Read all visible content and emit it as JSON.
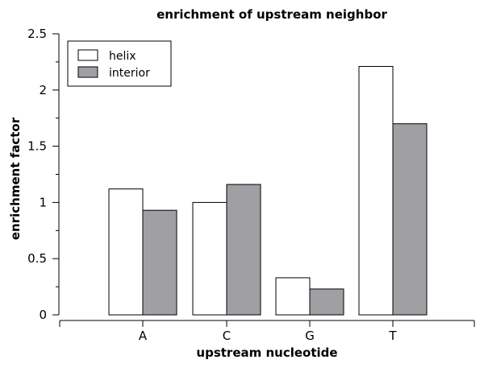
{
  "chart_data": {
    "type": "bar",
    "title": "enrichment of upstream neighbor",
    "xlabel": "upstream nucleotide",
    "ylabel": "enrichment factor",
    "categories": [
      "A",
      "C",
      "G",
      "T"
    ],
    "ylim": [
      0,
      2.5
    ],
    "yticks": [
      0,
      0.5,
      1,
      1.5,
      2,
      2.5
    ],
    "ytick_labels": [
      "0",
      "0.5",
      "1",
      "1.5",
      "2",
      "2.5"
    ],
    "series": [
      {
        "name": "helix",
        "color": "#ffffff",
        "values": [
          1.12,
          1.0,
          0.33,
          2.21
        ]
      },
      {
        "name": "interior",
        "color": "#a0a0a4",
        "values": [
          0.93,
          1.16,
          0.23,
          1.7
        ]
      }
    ],
    "legend": {
      "position": "top-left"
    },
    "grid": false
  }
}
